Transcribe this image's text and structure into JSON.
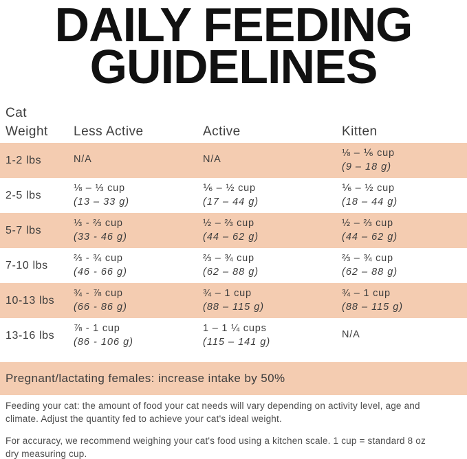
{
  "title": {
    "line1": "DAILY FEEDING",
    "line2": "GUIDELINES"
  },
  "table": {
    "header": {
      "weight": "Cat\nWeight",
      "less_active": "Less Active",
      "active": "Active",
      "kitten": "Kitten"
    },
    "rows": [
      {
        "weight": "1-2 lbs",
        "less_active": {
          "cups": "N/A",
          "grams": ""
        },
        "active": {
          "cups": "N/A",
          "grams": ""
        },
        "kitten": {
          "cups": "⅛ – ⅙ cup",
          "grams": "(9 – 18 g)"
        }
      },
      {
        "weight": "2-5 lbs",
        "less_active": {
          "cups": "⅛ – ⅓ cup",
          "grams": "(13 – 33 g)"
        },
        "active": {
          "cups": "⅙ – ½ cup",
          "grams": "(17 – 44 g)"
        },
        "kitten": {
          "cups": "⅙ – ½ cup",
          "grams": "(18 – 44 g)"
        }
      },
      {
        "weight": "5-7 lbs",
        "less_active": {
          "cups": "⅓ - ⅔ cup",
          "grams": "(33 - 46 g)"
        },
        "active": {
          "cups": "½ – ⅔ cup",
          "grams": "(44 – 62 g)"
        },
        "kitten": {
          "cups": "½ – ⅔ cup",
          "grams": "(44 – 62 g)"
        }
      },
      {
        "weight": "7-10 lbs",
        "less_active": {
          "cups": "⅔ - ¾ cup",
          "grams": "(46 - 66 g)"
        },
        "active": {
          "cups": "⅔ – ¾ cup",
          "grams": "(62 – 88 g)"
        },
        "kitten": {
          "cups": "⅔ – ¾ cup",
          "grams": "(62 – 88 g)"
        }
      },
      {
        "weight": "10-13 lbs",
        "less_active": {
          "cups": "¾ - ⅞ cup",
          "grams": "(66 - 86 g)"
        },
        "active": {
          "cups": "¾ – 1 cup",
          "grams": "(88 – 115 g)"
        },
        "kitten": {
          "cups": "¾ – 1 cup",
          "grams": "(88 – 115 g)"
        }
      },
      {
        "weight": "13-16 lbs",
        "less_active": {
          "cups": "⅞ - 1 cup",
          "grams": "(86 - 106 g)"
        },
        "active": {
          "cups": "1 – 1 ¼ cups",
          "grams": "(115 – 141 g)"
        },
        "kitten": {
          "cups": "N/A",
          "grams": ""
        }
      }
    ]
  },
  "pregnant_note": "Pregnant/lactating females: increase intake by 50%",
  "footer": {
    "para1": "Feeding your cat: the amount of food your cat needs will vary depending on activity level, age and\nclimate. Adjust the quantity fed to achieve your cat's ideal weight.",
    "para2": "For accuracy, we recommend weighing your cat's food using a kitchen scale. 1 cup = standard 8 oz\ndry measuring cup."
  },
  "colors": {
    "band": "#f4ccb1",
    "title": "#111111",
    "text": "#3d3d3d",
    "footer": "#4d4d4d"
  }
}
